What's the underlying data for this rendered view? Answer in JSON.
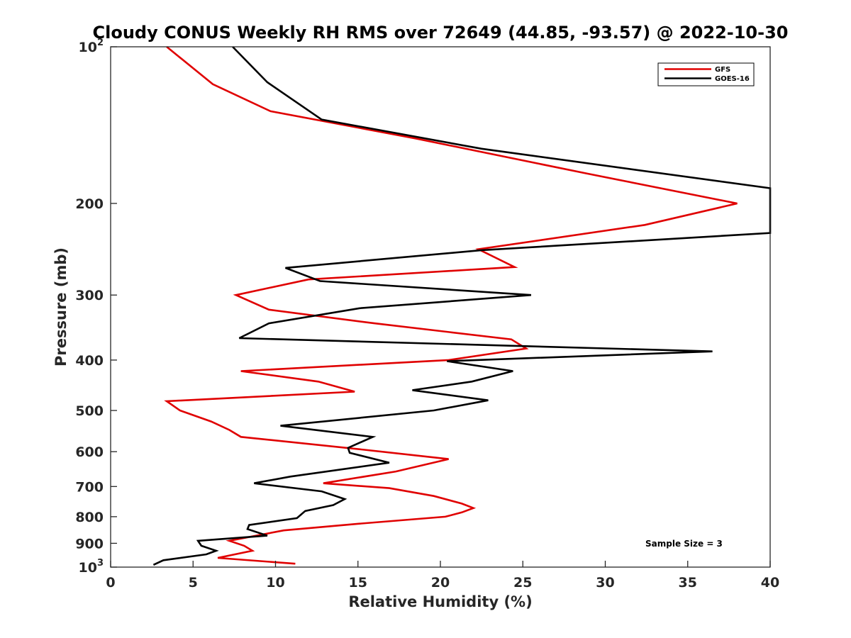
{
  "chart_data": {
    "type": "line",
    "title": "Cloudy CONUS Weekly RH RMS over 72649 (44.85, -93.57) @ 2022-10-30",
    "xlabel": "Relative Humidity (%)",
    "ylabel": "Pressure (mb)",
    "xlim": [
      0,
      40
    ],
    "ylim": [
      100,
      1000
    ],
    "y_scale": "log",
    "y_reversed": true,
    "grid": false,
    "legend_position": "top-right",
    "x_ticks": [
      "0",
      "5",
      "10",
      "15",
      "20",
      "25",
      "30",
      "35",
      "40"
    ],
    "y_ticks": [
      {
        "value": 100,
        "base": "10",
        "exp": "2"
      },
      {
        "value": 200,
        "label": "200"
      },
      {
        "value": 300,
        "label": "300"
      },
      {
        "value": 400,
        "label": "400"
      },
      {
        "value": 500,
        "label": "500"
      },
      {
        "value": 600,
        "label": "600"
      },
      {
        "value": 700,
        "label": "700"
      },
      {
        "value": 800,
        "label": "800"
      },
      {
        "value": 900,
        "label": "900"
      },
      {
        "value": 1000,
        "base": "10",
        "exp": "3"
      }
    ],
    "annotation": "Sample Size = 3",
    "series": [
      {
        "name": "GFS",
        "color": "#e00000",
        "points": [
          {
            "x": 3.4,
            "p": 100
          },
          {
            "x": 6.2,
            "p": 118
          },
          {
            "x": 9.7,
            "p": 133
          },
          {
            "x": 18.5,
            "p": 150
          },
          {
            "x": 28.8,
            "p": 175
          },
          {
            "x": 38.0,
            "p": 200
          },
          {
            "x": 32.4,
            "p": 220
          },
          {
            "x": 22.3,
            "p": 245
          },
          {
            "x": 24.5,
            "p": 265
          },
          {
            "x": 12.0,
            "p": 280
          },
          {
            "x": 7.6,
            "p": 300
          },
          {
            "x": 9.6,
            "p": 320
          },
          {
            "x": 16.0,
            "p": 340
          },
          {
            "x": 24.3,
            "p": 365
          },
          {
            "x": 25.2,
            "p": 380
          },
          {
            "x": 20.5,
            "p": 400
          },
          {
            "x": 7.9,
            "p": 420
          },
          {
            "x": 12.6,
            "p": 440
          },
          {
            "x": 14.8,
            "p": 460
          },
          {
            "x": 3.4,
            "p": 480
          },
          {
            "x": 4.2,
            "p": 500
          },
          {
            "x": 6.1,
            "p": 525
          },
          {
            "x": 7.2,
            "p": 545
          },
          {
            "x": 7.9,
            "p": 562
          },
          {
            "x": 15.4,
            "p": 595
          },
          {
            "x": 20.5,
            "p": 620
          },
          {
            "x": 17.3,
            "p": 655
          },
          {
            "x": 12.9,
            "p": 690
          },
          {
            "x": 16.9,
            "p": 705
          },
          {
            "x": 19.6,
            "p": 730
          },
          {
            "x": 21.3,
            "p": 755
          },
          {
            "x": 22.0,
            "p": 770
          },
          {
            "x": 21.3,
            "p": 785
          },
          {
            "x": 20.3,
            "p": 800
          },
          {
            "x": 15.1,
            "p": 825
          },
          {
            "x": 10.5,
            "p": 850
          },
          {
            "x": 7.2,
            "p": 890
          },
          {
            "x": 8.1,
            "p": 910
          },
          {
            "x": 8.6,
            "p": 930
          },
          {
            "x": 6.5,
            "p": 960
          },
          {
            "x": 11.2,
            "p": 985
          }
        ]
      },
      {
        "name": "GOES-16",
        "color": "#000000",
        "points": [
          {
            "x": 7.4,
            "p": 100
          },
          {
            "x": 9.5,
            "p": 117
          },
          {
            "x": 12.8,
            "p": 138
          },
          {
            "x": 22.5,
            "p": 157
          },
          {
            "x": 40.0,
            "p": 187
          },
          {
            "x": 40.0,
            "p": 228
          },
          {
            "x": 22.5,
            "p": 246
          },
          {
            "x": 10.6,
            "p": 266
          },
          {
            "x": 12.7,
            "p": 282
          },
          {
            "x": 25.5,
            "p": 300
          },
          {
            "x": 15.1,
            "p": 318
          },
          {
            "x": 9.6,
            "p": 340
          },
          {
            "x": 7.8,
            "p": 363
          },
          {
            "x": 36.5,
            "p": 385
          },
          {
            "x": 20.4,
            "p": 402
          },
          {
            "x": 24.4,
            "p": 420
          },
          {
            "x": 21.9,
            "p": 440
          },
          {
            "x": 18.3,
            "p": 457
          },
          {
            "x": 22.9,
            "p": 478
          },
          {
            "x": 19.6,
            "p": 500
          },
          {
            "x": 10.3,
            "p": 535
          },
          {
            "x": 15.9,
            "p": 562
          },
          {
            "x": 14.4,
            "p": 590
          },
          {
            "x": 14.5,
            "p": 603
          },
          {
            "x": 16.9,
            "p": 630
          },
          {
            "x": 10.9,
            "p": 670
          },
          {
            "x": 8.7,
            "p": 690
          },
          {
            "x": 12.8,
            "p": 715
          },
          {
            "x": 14.2,
            "p": 740
          },
          {
            "x": 13.5,
            "p": 760
          },
          {
            "x": 11.8,
            "p": 780
          },
          {
            "x": 11.3,
            "p": 805
          },
          {
            "x": 8.4,
            "p": 830
          },
          {
            "x": 8.3,
            "p": 845
          },
          {
            "x": 9.5,
            "p": 870
          },
          {
            "x": 5.3,
            "p": 890
          },
          {
            "x": 5.5,
            "p": 910
          },
          {
            "x": 6.4,
            "p": 930
          },
          {
            "x": 5.8,
            "p": 945
          },
          {
            "x": 3.2,
            "p": 970
          },
          {
            "x": 2.6,
            "p": 990
          }
        ]
      }
    ]
  }
}
